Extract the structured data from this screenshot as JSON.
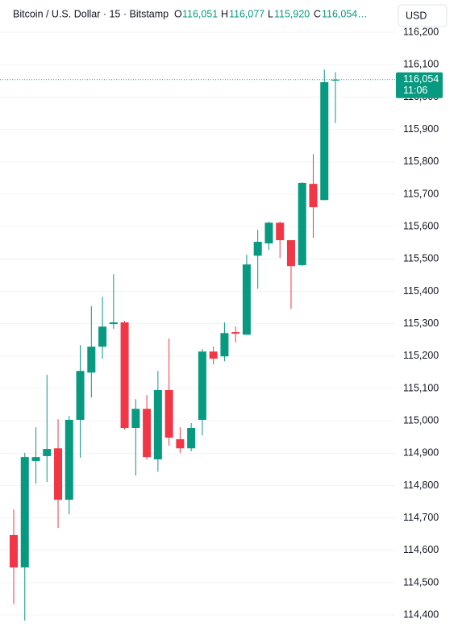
{
  "header": {
    "symbol": "Bitcoin / U.S. Dollar · 15 · Bitstamp",
    "ohlc": [
      {
        "key": "O",
        "value": "116,051"
      },
      {
        "key": "H",
        "value": "116,077"
      },
      {
        "key": "L",
        "value": "115,920"
      },
      {
        "key": "C",
        "value": "116,054…"
      }
    ],
    "currency": "USD"
  },
  "price_tag": {
    "price": "116,054",
    "time": "11:06"
  },
  "chart_data": {
    "type": "candlestick",
    "up_color": "#089981",
    "down_color": "#f23645",
    "ylim": [
      114363,
      116300
    ],
    "yticks": [
      {
        "value": 114400,
        "label": "114,400"
      },
      {
        "value": 114500,
        "label": "114,500"
      },
      {
        "value": 114600,
        "label": "114,600"
      },
      {
        "value": 114700,
        "label": "114,700"
      },
      {
        "value": 114800,
        "label": "114,800"
      },
      {
        "value": 114900,
        "label": "114,900"
      },
      {
        "value": 115000,
        "label": "115,000"
      },
      {
        "value": 115100,
        "label": "115,100"
      },
      {
        "value": 115200,
        "label": "115,200"
      },
      {
        "value": 115300,
        "label": "115,300"
      },
      {
        "value": 115400,
        "label": "115,400"
      },
      {
        "value": 115500,
        "label": "115,500"
      },
      {
        "value": 115600,
        "label": "115,600"
      },
      {
        "value": 115700,
        "label": "115,700"
      },
      {
        "value": 115800,
        "label": "115,800"
      },
      {
        "value": 115900,
        "label": "115,900"
      },
      {
        "value": 116000,
        "label": "116,000"
      },
      {
        "value": 116100,
        "label": "116,100"
      },
      {
        "value": 116200,
        "label": "116,200"
      }
    ],
    "grid": true,
    "open": [
      114647,
      114547,
      114876,
      114891,
      114915,
      114756,
      115003,
      115149,
      115229,
      115299,
      115304,
      114978,
      115037,
      114881,
      115095,
      114943,
      114915,
      115003,
      115214,
      115199,
      115274,
      115266,
      115510,
      115548,
      115612,
      115558,
      115481,
      115732,
      115682,
      116051
    ],
    "high": [
      114726,
      114901,
      114980,
      115142,
      115005,
      115015,
      115234,
      115354,
      115383,
      115453,
      115309,
      115067,
      115080,
      115154,
      115254,
      114980,
      114993,
      115222,
      115229,
      115304,
      115291,
      115513,
      115590,
      115615,
      115615,
      115558,
      115737,
      115824,
      116085,
      116077
    ],
    "low": [
      114433,
      114383,
      114806,
      114811,
      114669,
      114711,
      114886,
      115072,
      115192,
      115284,
      114973,
      114831,
      114881,
      114843,
      114923,
      114901,
      114906,
      114955,
      115174,
      115184,
      115242,
      115266,
      115408,
      115528,
      115503,
      115346,
      115478,
      115565,
      115682,
      115920
    ],
    "close": [
      114547,
      114888,
      114888,
      114913,
      114756,
      115003,
      115154,
      115229,
      115291,
      115304,
      114978,
      115037,
      114888,
      115095,
      114948,
      114915,
      114978,
      115214,
      115192,
      115271,
      115269,
      115483,
      115553,
      115612,
      115558,
      115478,
      115735,
      115660,
      116046,
      116054
    ]
  }
}
